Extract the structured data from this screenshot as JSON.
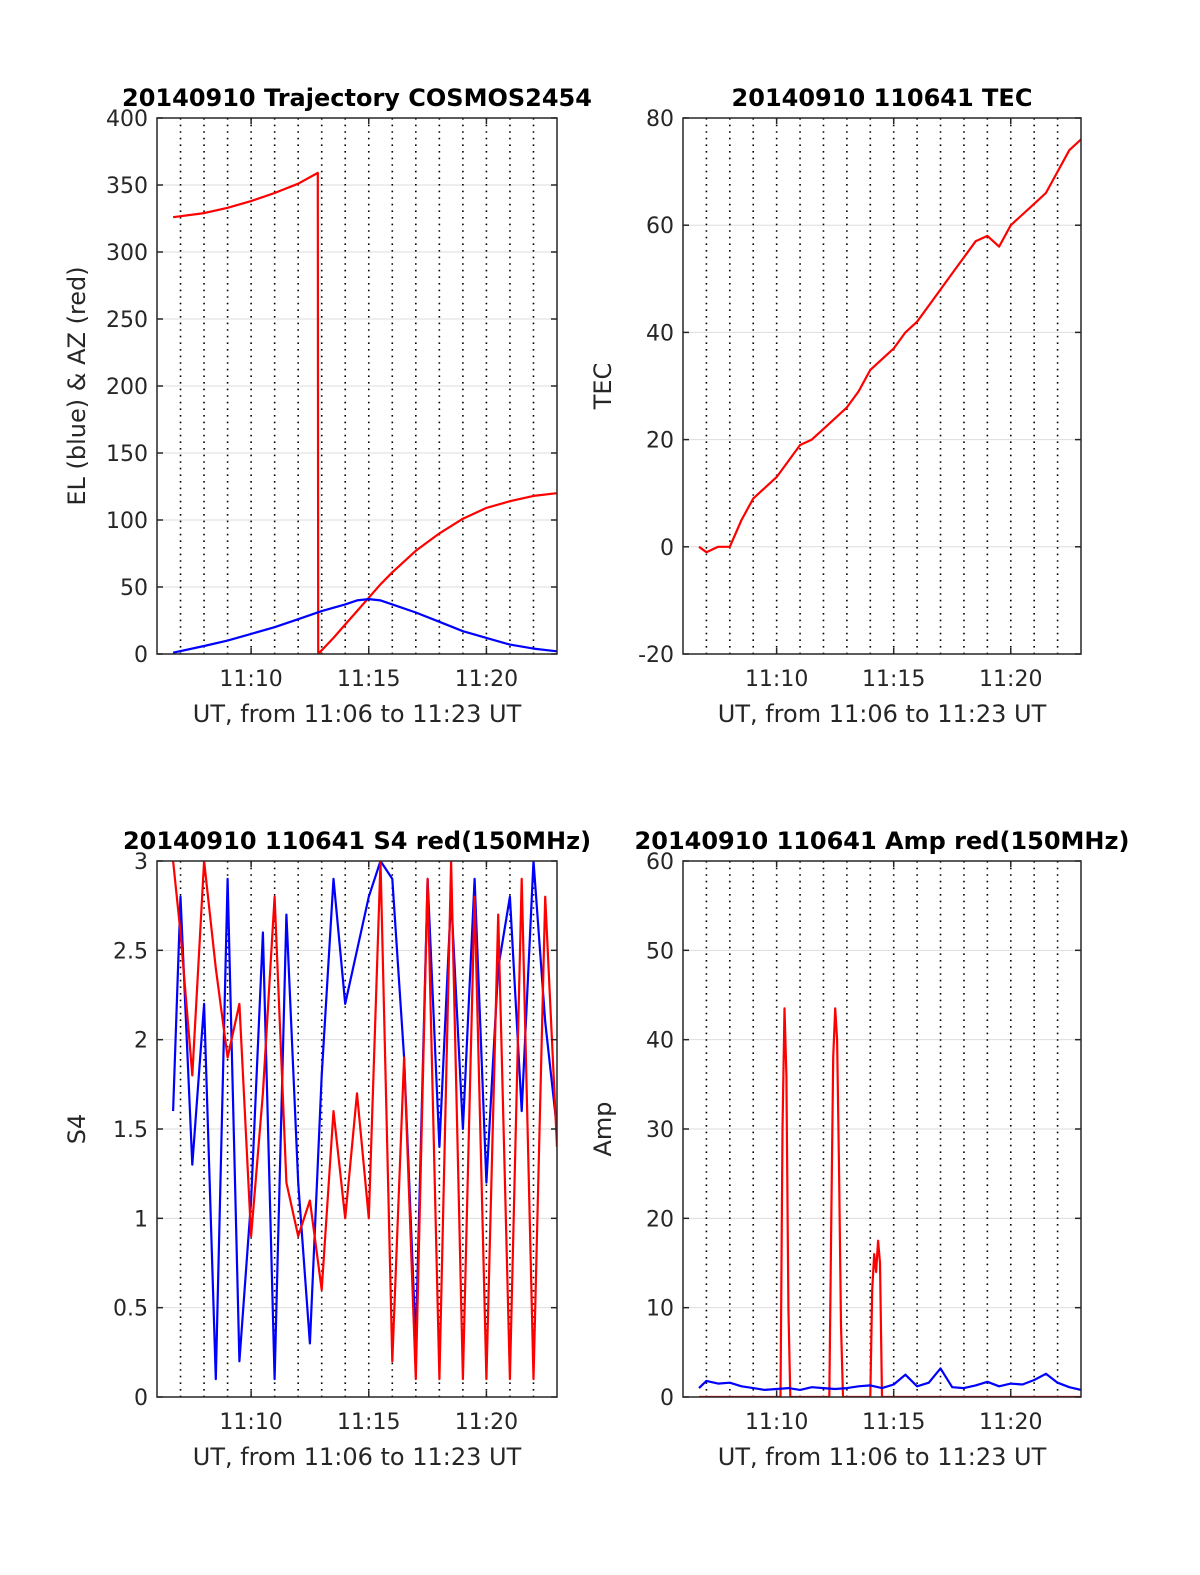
{
  "figure": {
    "background": "#ffffff",
    "colors": {
      "red": "#ff0000",
      "blue": "#0000ff",
      "axis": "#262626",
      "grid": "#dddddd",
      "vgrid": "#000000"
    }
  },
  "chart_data": [
    {
      "id": "trajectory",
      "type": "line",
      "title": "20140910 Trajectory COSMOS2454",
      "xlabel": "UT, from 11:06 to 11:23 UT",
      "ylabel": "EL (blue) & AZ (red)",
      "xlim": [
        "11:06:00",
        "11:23:00"
      ],
      "ylim": [
        0,
        400
      ],
      "xticks": [
        "11:10",
        "11:15",
        "11:20"
      ],
      "yticks": [
        "0",
        "50",
        "100",
        "150",
        "200",
        "250",
        "300",
        "350",
        "400"
      ],
      "grid": "horizontal solid, vertical dotted every minute",
      "series": [
        {
          "color": "#ff0000",
          "x": [
            "11:06:41",
            "11:08:00",
            "11:09:00",
            "11:10:00",
            "11:11:00",
            "11:12:00",
            "11:12:50",
            "11:12:51",
            "11:13:30",
            "11:14:00",
            "11:14:30",
            "11:15:00",
            "11:15:30",
            "11:16:00",
            "11:17:00",
            "11:18:00",
            "11:19:00",
            "11:20:00",
            "11:21:00",
            "11:22:00",
            "11:23:00"
          ],
          "values": [
            326,
            329,
            333,
            338,
            344,
            351,
            359,
            0,
            12,
            22,
            32,
            42,
            52,
            61,
            77,
            90,
            101,
            109,
            114,
            118,
            120
          ]
        },
        {
          "color": "#0000ff",
          "x": [
            "11:06:41",
            "11:08:00",
            "11:09:00",
            "11:10:00",
            "11:11:00",
            "11:12:00",
            "11:13:00",
            "11:14:00",
            "11:14:30",
            "11:15:00",
            "11:15:30",
            "11:16:00",
            "11:17:00",
            "11:18:00",
            "11:19:00",
            "11:20:00",
            "11:21:00",
            "11:22:00",
            "11:23:00"
          ],
          "values": [
            1,
            6,
            10,
            15,
            20,
            26,
            32,
            37,
            40,
            41,
            40,
            37,
            31,
            24,
            17,
            12,
            7,
            4,
            2
          ]
        }
      ]
    },
    {
      "id": "tec",
      "type": "line",
      "title": "20140910 110641 TEC",
      "xlabel": "UT, from 11:06 to 11:23 UT",
      "ylabel": "TEC",
      "xlim": [
        "11:06:00",
        "11:23:00"
      ],
      "ylim": [
        -20,
        80
      ],
      "xticks": [
        "11:10",
        "11:15",
        "11:20"
      ],
      "yticks": [
        "-20",
        "0",
        "20",
        "40",
        "60",
        "80"
      ],
      "grid": "horizontal solid, vertical dotted every minute",
      "series": [
        {
          "color": "#ff0000",
          "x": [
            "11:06:41",
            "11:07:00",
            "11:07:30",
            "11:08:00",
            "11:08:30",
            "11:09:00",
            "11:09:30",
            "11:10:00",
            "11:10:30",
            "11:11:00",
            "11:11:30",
            "11:12:00",
            "11:12:30",
            "11:13:00",
            "11:13:30",
            "11:14:00",
            "11:14:30",
            "11:15:00",
            "11:15:30",
            "11:16:00",
            "11:16:30",
            "11:17:00",
            "11:17:30",
            "11:18:00",
            "11:18:30",
            "11:19:00",
            "11:19:30",
            "11:20:00",
            "11:20:30",
            "11:21:00",
            "11:21:30",
            "11:22:00",
            "11:22:30",
            "11:23:00"
          ],
          "values": [
            0,
            -1,
            0,
            0,
            5,
            9,
            11,
            13,
            16,
            19,
            20,
            22,
            24,
            26,
            29,
            33,
            35,
            37,
            40,
            42,
            45,
            48,
            51,
            54,
            57,
            58,
            56,
            60,
            62,
            64,
            66,
            70,
            74,
            76
          ]
        }
      ]
    },
    {
      "id": "s4",
      "type": "line",
      "title": "20140910 110641 S4 red(150MHz)",
      "xlabel": "UT, from 11:06 to 11:23 UT",
      "ylabel": "S4",
      "xlim": [
        "11:06:00",
        "11:23:00"
      ],
      "ylim": [
        0,
        3
      ],
      "xticks": [
        "11:10",
        "11:15",
        "11:20"
      ],
      "yticks": [
        "0",
        "0.5",
        "1",
        "1.5",
        "2",
        "2.5",
        "3"
      ],
      "grid": "horizontal solid, vertical dotted every minute",
      "series": [
        {
          "color": "#0000ff",
          "x": [
            "11:06:41",
            "11:07:00",
            "11:07:30",
            "11:08:00",
            "11:08:30",
            "11:09:00",
            "11:09:30",
            "11:10:00",
            "11:10:30",
            "11:11:00",
            "11:11:30",
            "11:12:00",
            "11:12:30",
            "11:13:00",
            "11:13:30",
            "11:14:00",
            "11:14:30",
            "11:15:00",
            "11:15:30",
            "11:16:00",
            "11:16:30",
            "11:17:00",
            "11:17:30",
            "11:18:00",
            "11:18:30",
            "11:19:00",
            "11:19:30",
            "11:20:00",
            "11:20:30",
            "11:21:00",
            "11:21:30",
            "11:22:00",
            "11:22:30",
            "11:23:00"
          ],
          "values": [
            1.6,
            2.8,
            1.3,
            2.2,
            0.1,
            2.9,
            0.2,
            1.1,
            2.6,
            0.1,
            2.7,
            1.2,
            0.3,
            1.8,
            2.9,
            2.2,
            2.5,
            2.8,
            3.0,
            2.9,
            1.9,
            0.3,
            2.9,
            1.4,
            2.8,
            1.5,
            2.9,
            1.2,
            2.4,
            2.8,
            1.6,
            3.0,
            2.1,
            1.5
          ]
        },
        {
          "color": "#ff0000",
          "x": [
            "11:06:41",
            "11:07:00",
            "11:07:30",
            "11:08:00",
            "11:08:30",
            "11:09:00",
            "11:09:30",
            "11:10:00",
            "11:10:30",
            "11:11:00",
            "11:11:30",
            "11:12:00",
            "11:12:30",
            "11:13:00",
            "11:13:30",
            "11:14:00",
            "11:14:30",
            "11:15:00",
            "11:15:30",
            "11:16:00",
            "11:16:30",
            "11:17:00",
            "11:17:30",
            "11:18:00",
            "11:18:30",
            "11:19:00",
            "11:19:30",
            "11:20:00",
            "11:20:30",
            "11:21:00",
            "11:21:30",
            "11:22:00",
            "11:22:30",
            "11:23:00"
          ],
          "values": [
            3.0,
            2.6,
            1.8,
            3.0,
            2.4,
            1.9,
            2.2,
            0.9,
            1.7,
            2.8,
            1.2,
            0.9,
            1.1,
            0.6,
            1.6,
            1.0,
            1.7,
            1.0,
            3.0,
            0.2,
            1.9,
            0.1,
            2.9,
            0.1,
            3.0,
            0.1,
            2.8,
            0.1,
            2.7,
            0.1,
            2.9,
            0.1,
            2.8,
            1.4
          ]
        }
      ]
    },
    {
      "id": "amp",
      "type": "line",
      "title": "20140910 110641 Amp red(150MHz)",
      "xlabel": "UT, from 11:06 to 11:23 UT",
      "ylabel": "Amp",
      "xlim": [
        "11:06:00",
        "11:23:00"
      ],
      "ylim": [
        0,
        60
      ],
      "xticks": [
        "11:10",
        "11:15",
        "11:20"
      ],
      "yticks": [
        "0",
        "10",
        "20",
        "30",
        "40",
        "50",
        "60"
      ],
      "grid": "horizontal solid, vertical dotted every minute",
      "series": [
        {
          "color": "#ff0000",
          "x": [
            "11:06:41",
            "11:10:10",
            "11:10:15",
            "11:10:20",
            "11:10:25",
            "11:10:30",
            "11:10:35",
            "11:12:15",
            "11:12:20",
            "11:12:25",
            "11:12:30",
            "11:12:35",
            "11:12:40",
            "11:12:45",
            "11:12:50",
            "11:14:00",
            "11:14:05",
            "11:14:10",
            "11:14:15",
            "11:14:20",
            "11:14:25",
            "11:14:30",
            "11:23:00"
          ],
          "values": [
            0,
            0,
            30,
            43.5,
            36,
            10,
            0,
            0,
            20,
            38,
            43.5,
            40,
            25,
            8,
            0,
            0,
            12,
            16,
            14,
            17.5,
            15,
            0,
            0
          ]
        },
        {
          "color": "#0000ff",
          "x": [
            "11:06:41",
            "11:07:00",
            "11:07:30",
            "11:08:00",
            "11:08:30",
            "11:09:00",
            "11:09:30",
            "11:10:00",
            "11:10:30",
            "11:11:00",
            "11:11:30",
            "11:12:00",
            "11:12:30",
            "11:13:00",
            "11:13:30",
            "11:14:00",
            "11:14:30",
            "11:15:00",
            "11:15:30",
            "11:16:00",
            "11:16:30",
            "11:17:00",
            "11:17:30",
            "11:18:00",
            "11:18:30",
            "11:19:00",
            "11:19:30",
            "11:20:00",
            "11:20:30",
            "11:21:00",
            "11:21:30",
            "11:22:00",
            "11:22:30",
            "11:23:00"
          ],
          "values": [
            1.0,
            1.8,
            1.5,
            1.6,
            1.2,
            1.0,
            0.8,
            0.9,
            1.0,
            0.8,
            1.1,
            1.0,
            0.9,
            1.0,
            1.2,
            1.3,
            1.0,
            1.4,
            2.5,
            1.2,
            1.6,
            3.2,
            1.1,
            1.0,
            1.3,
            1.7,
            1.2,
            1.5,
            1.4,
            1.9,
            2.6,
            1.6,
            1.1,
            0.8
          ]
        }
      ]
    }
  ]
}
